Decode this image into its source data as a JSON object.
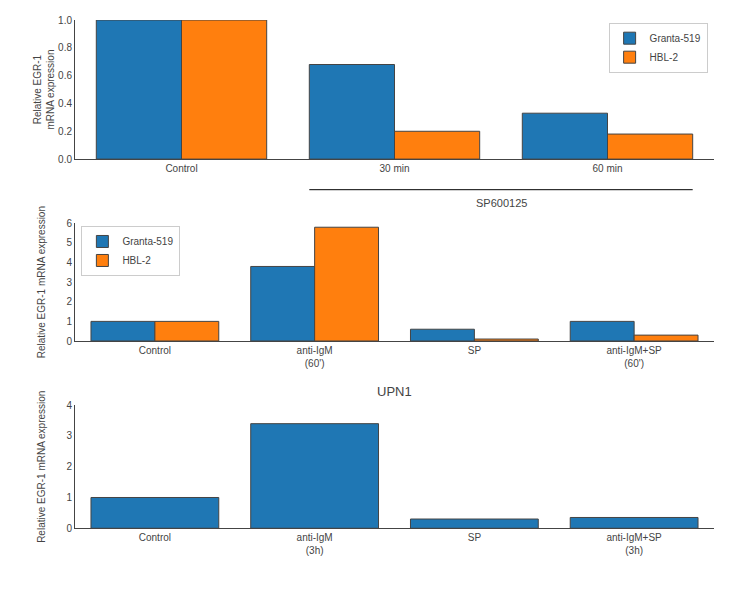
{
  "chart_data": [
    {
      "type": "bar",
      "categories": [
        "Control",
        "30 min",
        "60 min"
      ],
      "series": [
        {
          "name": "Granta-519",
          "values": [
            1.0,
            0.68,
            0.33
          ]
        },
        {
          "name": "HBL-2",
          "values": [
            1.0,
            0.2,
            0.18
          ]
        }
      ],
      "ylabel": "Relative EGR-1\nmRNA expression",
      "ylim": [
        0.0,
        1.0
      ],
      "yticks": [
        {
          "value": 0,
          "label": "0.0"
        },
        0.2,
        0.4,
        0.6,
        0.8,
        {
          "value": 1,
          "label": "1.0"
        }
      ],
      "legend": "upper right",
      "grid": false,
      "annotations": [
        {
          "text": "SP600125",
          "categories": [
            "30 min",
            "60 min"
          ]
        }
      ]
    },
    {
      "type": "bar",
      "categories": [
        "Control",
        "anti-IgM\n(60')",
        "SP",
        "anti-IgM+SP\n(60')"
      ],
      "series": [
        {
          "name": "Granta-519",
          "values": [
            1.0,
            3.8,
            0.6,
            1.0
          ]
        },
        {
          "name": "HBL-2",
          "values": [
            1.0,
            5.8,
            0.1,
            0.3
          ]
        }
      ],
      "ylabel": "Relative EGR-1 mRNA expression",
      "ylim": [
        0,
        6
      ],
      "yticks": [
        0,
        1,
        2,
        3,
        4,
        5,
        6
      ],
      "legend": "upper left",
      "grid": false
    },
    {
      "type": "bar",
      "title": "UPN1",
      "categories": [
        "Control",
        "anti-IgM\n(3h)",
        "SP",
        "anti-IgM+SP\n(3h)"
      ],
      "values": [
        1.0,
        3.4,
        0.3,
        0.35
      ],
      "ylabel": "Relative EGR-1 mRNA expression",
      "ylim": [
        0,
        4
      ],
      "yticks": [
        0,
        1,
        2,
        3,
        4
      ],
      "grid": false
    }
  ]
}
